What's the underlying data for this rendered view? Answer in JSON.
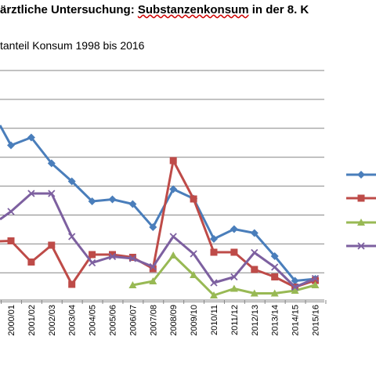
{
  "title": {
    "prefix": "ärztliche Untersuchung: ",
    "underlined": "Substanzenkonsum",
    "suffix": " in der 8. K"
  },
  "subtitle": "tanteil Konsum 1998 bis 2016",
  "chart_data": {
    "type": "line",
    "categories": [
      "2000/01",
      "2001/02",
      "2002/03",
      "2003/04",
      "2004/05",
      "2005/06",
      "2006/07",
      "2007/08",
      "2008/09",
      "2009/10",
      "2010/11",
      "2011/12",
      "2012/13",
      "2013/14",
      "2014/15",
      "2015/16"
    ],
    "x_left_value_index": -0.5,
    "y_grid_lines": 9,
    "grid": true,
    "legend_placement": "right (cut off)",
    "series": [
      {
        "color": "#4a7ebb",
        "marker": "diamond",
        "values": [
          185.5,
          175.5,
          208.5,
          231.5,
          257,
          254.5,
          260.5,
          290,
          241.5,
          253.5,
          305,
          292.5,
          297.5,
          327,
          358.5,
          356
        ],
        "first_segment_from_y": 160
      },
      {
        "color": "#be4b48",
        "marker": "square",
        "values": [
          307.5,
          334.5,
          313,
          363,
          325,
          325,
          328.5,
          343,
          205,
          254,
          322,
          322,
          344,
          353.5,
          366.5,
          358
        ],
        "first_segment_from_y": 308
      },
      {
        "color": "#98b954",
        "marker": "triangle",
        "values": [
          null,
          null,
          null,
          null,
          null,
          null,
          364,
          359,
          326,
          351,
          377,
          368.5,
          374.5,
          374.5,
          371,
          364
        ],
        "first_segment_from_y": null
      },
      {
        "color": "#7d60a0",
        "marker": "x",
        "values": [
          270,
          247,
          247,
          302,
          335.5,
          327.5,
          330,
          340.5,
          302,
          324,
          361,
          353.5,
          322.5,
          341,
          366.5,
          355.5
        ],
        "first_segment_from_y": 280
      }
    ]
  },
  "legend_colors": [
    "#4a7ebb",
    "#be4b48",
    "#98b954",
    "#7d60a0"
  ]
}
